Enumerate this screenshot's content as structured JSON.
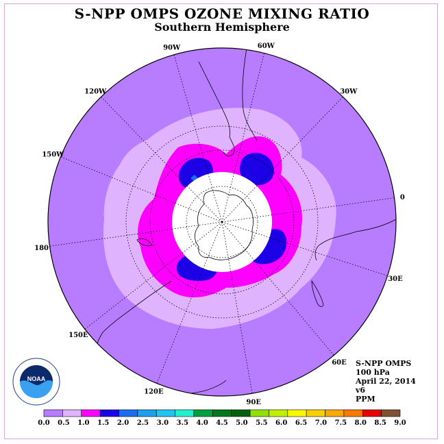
{
  "header": {
    "title": "S-NPP OMPS OZONE MIXING RATIO",
    "subtitle": "Southern Hemisphere"
  },
  "map": {
    "projection": "polar-stereographic-south",
    "longitude_labels": [
      "90W",
      "60W",
      "30W",
      "0",
      "30E",
      "60E",
      "90E",
      "120E",
      "150E",
      "180",
      "150W",
      "120W"
    ],
    "ocean_color": "#b77cff",
    "missing_data_color": "#ffffff"
  },
  "info": {
    "instrument": "S-NPP OMPS",
    "level": "100 hPa",
    "date": "April 22, 2014",
    "version": "v6",
    "units": "PPM"
  },
  "logo": {
    "label": "NOAA"
  },
  "colorbar": {
    "ticks": [
      "0.0",
      "0.5",
      "1.0",
      "1.5",
      "2.0",
      "2.5",
      "3.0",
      "3.5",
      "4.0",
      "4.5",
      "5.0",
      "5.5",
      "6.0",
      "6.5",
      "7.0",
      "7.5",
      "8.0",
      "8.5",
      "9.0"
    ],
    "colors": [
      "#b77cff",
      "#e0b3ff",
      "#ff00ff",
      "#1c00e6",
      "#1c6cf0",
      "#1d9ff0",
      "#22c4f0",
      "#22f0d0",
      "#00a040",
      "#007820",
      "#006010",
      "#90e000",
      "#c0f000",
      "#f8f800",
      "#f8d000",
      "#f8a800",
      "#f87800",
      "#e80000",
      "#805030"
    ]
  }
}
